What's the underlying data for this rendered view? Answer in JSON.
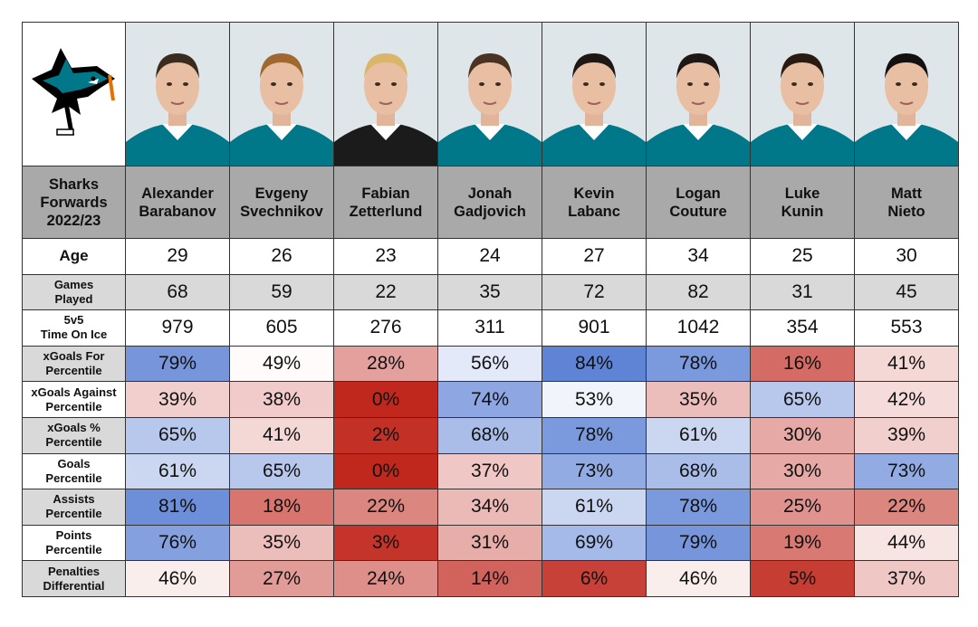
{
  "header": {
    "title_lines": [
      "Sharks",
      "Forwards",
      "2022/23"
    ]
  },
  "logo": {
    "name": "san-jose-sharks-logo",
    "colors": {
      "teal": "#00788a",
      "black": "#000000",
      "orange": "#e57200"
    }
  },
  "players": [
    {
      "first": "Alexander",
      "last": "Barabanov",
      "jersey": "#00788a",
      "hair": "#3b2a1e"
    },
    {
      "first": "Evgeny",
      "last": "Svechnikov",
      "jersey": "#00788a",
      "hair": "#a0672f"
    },
    {
      "first": "Fabian",
      "last": "Zetterlund",
      "jersey": "#1b1b1b",
      "hair": "#d9b66a"
    },
    {
      "first": "Jonah",
      "last": "Gadjovich",
      "jersey": "#00788a",
      "hair": "#4a3322"
    },
    {
      "first": "Kevin",
      "last": "Labanc",
      "jersey": "#00788a",
      "hair": "#1e1713"
    },
    {
      "first": "Logan",
      "last": "Couture",
      "jersey": "#00788a",
      "hair": "#1e1713"
    },
    {
      "first": "Luke",
      "last": "Kunin",
      "jersey": "#00788a",
      "hair": "#2a1b12"
    },
    {
      "first": "Matt",
      "last": "Nieto",
      "jersey": "#00788a",
      "hair": "#151010"
    }
  ],
  "rows": [
    {
      "label": [
        "Age"
      ],
      "type": "plain",
      "values": [
        "29",
        "26",
        "23",
        "24",
        "27",
        "34",
        "25",
        "30"
      ]
    },
    {
      "label": [
        "Games",
        "Played"
      ],
      "type": "plain",
      "values": [
        "68",
        "59",
        "22",
        "35",
        "72",
        "82",
        "31",
        "45"
      ]
    },
    {
      "label": [
        "5v5",
        "Time On Ice"
      ],
      "type": "plain",
      "values": [
        "979",
        "605",
        "276",
        "311",
        "901",
        "1042",
        "354",
        "553"
      ]
    },
    {
      "label": [
        "xGoals For",
        "Percentile"
      ],
      "type": "percentile",
      "values": [
        79,
        49,
        28,
        56,
        84,
        78,
        16,
        41
      ]
    },
    {
      "label": [
        "xGoals Against",
        "Percentile"
      ],
      "type": "percentile",
      "values": [
        39,
        38,
        0,
        74,
        53,
        35,
        65,
        42
      ]
    },
    {
      "label": [
        "xGoals %",
        "Percentile"
      ],
      "type": "percentile",
      "values": [
        65,
        41,
        2,
        68,
        78,
        61,
        30,
        39
      ]
    },
    {
      "label": [
        "Goals",
        "Percentile"
      ],
      "type": "percentile",
      "values": [
        61,
        65,
        0,
        37,
        73,
        68,
        30,
        73
      ]
    },
    {
      "label": [
        "Assists",
        "Percentile"
      ],
      "type": "percentile",
      "values": [
        81,
        18,
        22,
        34,
        61,
        78,
        25,
        22
      ]
    },
    {
      "label": [
        "Points",
        "Percentile"
      ],
      "type": "percentile",
      "values": [
        76,
        35,
        3,
        31,
        69,
        79,
        19,
        44
      ]
    },
    {
      "label": [
        "Penalties",
        "Differential"
      ],
      "type": "percentile",
      "values": [
        46,
        27,
        24,
        14,
        6,
        46,
        5,
        37
      ]
    }
  ],
  "colors": {
    "low": "#c0271d",
    "mid": "#ffffff",
    "high": "#5a7fd4",
    "header_bg": "#a9a9a9",
    "alt_row_bg": "#d9d9d9"
  },
  "chart_data": {
    "type": "heatmap",
    "title": "Sharks Forwards 2022/23",
    "columns": [
      "Alexander Barabanov",
      "Evgeny Svechnikov",
      "Fabian Zetterlund",
      "Jonah Gadjovich",
      "Kevin Labanc",
      "Logan Couture",
      "Luke Kunin",
      "Matt Nieto"
    ],
    "row_labels": [
      "Age",
      "Games Played",
      "5v5 Time On Ice",
      "xGoals For Percentile",
      "xGoals Against Percentile",
      "xGoals % Percentile",
      "Goals Percentile",
      "Assists Percentile",
      "Points Percentile",
      "Penalties Differential"
    ],
    "color_scale": {
      "min": 0,
      "mid": 50,
      "max": 100,
      "low_color": "#c0271d",
      "mid_color": "#ffffff",
      "high_color": "#5a7fd4"
    }
  }
}
